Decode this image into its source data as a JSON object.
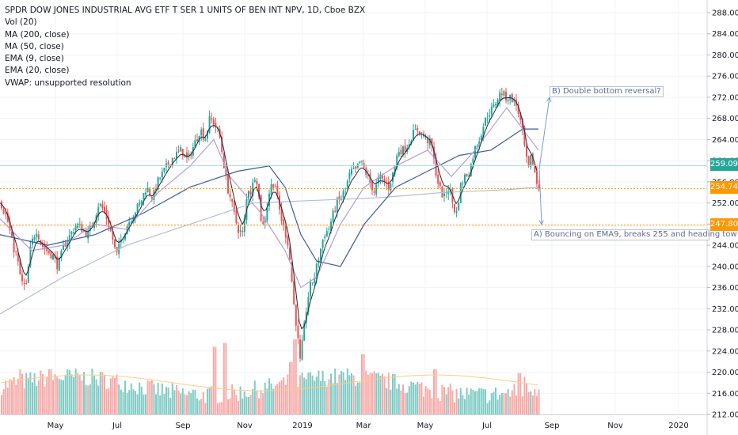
{
  "legend": {
    "title": "SPDR DOW JONES INDUSTRIAL AVG ETF T SER 1 UNITS OF BEN INT NPV, 1D, Cboe BZX",
    "lines": [
      "Vol (20)",
      "MA (200, close)",
      "MA (50, close)",
      "EMA (9, close)",
      "EMA (20, close)",
      "VWAP: unsupported resolution"
    ]
  },
  "price_tags": [
    {
      "label": "259.09",
      "color": "#26a69a"
    },
    {
      "label": "254.74",
      "color": "#ff9800"
    },
    {
      "label": "247.80",
      "color": "#ff9800"
    }
  ],
  "annotations": {
    "b": "B) Double bottom reversal?",
    "a": "A) Bouncing on EMA9, breaks 255 and heading tow"
  },
  "colors": {
    "up": "#26a69a",
    "down": "#ef5350",
    "vol_up": "#80cbc4",
    "vol_down": "#f7a9a7",
    "ma200": "#b2bfd6",
    "ma50": "#3f5c9a",
    "ema9": "#1e2a3a",
    "ema20": "#b39ddb",
    "level": "#ff9800",
    "grid": "#f0f3fa"
  },
  "chart_data": {
    "type": "candlestick",
    "symbol": "SPDR DOW JONES INDUSTRIAL AVG ETF T SER 1 UNITS OF BEN INT NPV",
    "interval": "1D",
    "exchange": "Cboe BZX",
    "ylim": [
      212,
      290
    ],
    "y_ticks": [
      "288.00",
      "284.00",
      "280.00",
      "276.00",
      "272.00",
      "268.00",
      "264.00",
      "260.00",
      "256.00",
      "252.00",
      "248.00",
      "244.00",
      "240.00",
      "236.00",
      "232.00",
      "228.00",
      "224.00",
      "220.00",
      "216.00",
      "212.00"
    ],
    "x_ticks": [
      "May",
      "Jul",
      "Sep",
      "Nov",
      "2019",
      "Mar",
      "May",
      "Jul",
      "Sep",
      "Nov",
      "2020"
    ],
    "horizontal_levels": [
      254.74,
      247.8
    ],
    "last_price": 259.09,
    "close_path": [
      [
        0,
        252
      ],
      [
        8,
        249
      ],
      [
        15,
        244
      ],
      [
        20,
        242
      ],
      [
        26,
        237
      ],
      [
        32,
        236
      ],
      [
        38,
        244
      ],
      [
        45,
        247
      ],
      [
        52,
        244
      ],
      [
        58,
        243
      ],
      [
        66,
        242
      ],
      [
        72,
        240
      ],
      [
        80,
        244
      ],
      [
        88,
        246
      ],
      [
        96,
        248
      ],
      [
        103,
        247
      ],
      [
        110,
        246
      ],
      [
        118,
        249
      ],
      [
        124,
        252
      ],
      [
        132,
        250
      ],
      [
        140,
        246
      ],
      [
        146,
        242
      ],
      [
        152,
        245
      ],
      [
        160,
        248
      ],
      [
        168,
        250
      ],
      [
        176,
        252
      ],
      [
        184,
        255
      ],
      [
        192,
        253
      ],
      [
        198,
        256
      ],
      [
        206,
        258
      ],
      [
        214,
        260
      ],
      [
        220,
        261
      ],
      [
        228,
        262
      ],
      [
        236,
        260
      ],
      [
        244,
        263
      ],
      [
        252,
        266
      ],
      [
        258,
        264
      ],
      [
        264,
        268
      ],
      [
        270,
        267
      ],
      [
        276,
        265
      ],
      [
        280,
        261
      ],
      [
        286,
        255
      ],
      [
        290,
        253
      ],
      [
        296,
        249
      ],
      [
        300,
        247
      ],
      [
        306,
        246
      ],
      [
        312,
        255
      ],
      [
        316,
        254
      ],
      [
        322,
        258
      ],
      [
        326,
        253
      ],
      [
        330,
        247
      ],
      [
        336,
        251
      ],
      [
        340,
        255
      ],
      [
        346,
        256
      ],
      [
        350,
        252
      ],
      [
        356,
        248
      ],
      [
        362,
        245
      ],
      [
        366,
        240
      ],
      [
        370,
        233
      ],
      [
        374,
        228
      ],
      [
        378,
        222
      ],
      [
        382,
        227
      ],
      [
        386,
        232
      ],
      [
        390,
        236
      ],
      [
        396,
        238
      ],
      [
        402,
        242
      ],
      [
        408,
        246
      ],
      [
        414,
        247
      ],
      [
        418,
        249
      ],
      [
        424,
        252
      ],
      [
        430,
        253
      ],
      [
        436,
        255
      ],
      [
        442,
        258
      ],
      [
        448,
        258
      ],
      [
        454,
        260
      ],
      [
        460,
        258
      ],
      [
        466,
        256
      ],
      [
        472,
        254
      ],
      [
        478,
        257
      ],
      [
        484,
        256
      ],
      [
        490,
        255
      ],
      [
        496,
        258
      ],
      [
        502,
        262
      ],
      [
        508,
        262
      ],
      [
        514,
        263
      ],
      [
        520,
        265
      ],
      [
        526,
        266
      ],
      [
        532,
        265
      ],
      [
        538,
        264
      ],
      [
        544,
        263
      ],
      [
        548,
        259
      ],
      [
        552,
        256
      ],
      [
        556,
        254
      ],
      [
        560,
        253
      ],
      [
        564,
        255
      ],
      [
        568,
        254
      ],
      [
        572,
        251
      ],
      [
        576,
        250
      ],
      [
        580,
        255
      ],
      [
        586,
        257
      ],
      [
        592,
        258
      ],
      [
        598,
        262
      ],
      [
        604,
        264
      ],
      [
        610,
        267
      ],
      [
        616,
        269
      ],
      [
        622,
        270
      ],
      [
        628,
        272
      ],
      [
        632,
        273
      ],
      [
        638,
        272
      ],
      [
        644,
        272
      ],
      [
        650,
        271
      ],
      [
        654,
        269
      ],
      [
        658,
        266
      ],
      [
        662,
        262
      ],
      [
        666,
        258
      ],
      [
        670,
        261
      ],
      [
        674,
        258
      ],
      [
        678,
        255
      ],
      [
        680,
        254.7
      ]
    ],
    "ma200_path": [
      [
        0,
        231
      ],
      [
        80,
        238
      ],
      [
        160,
        244
      ],
      [
        240,
        248
      ],
      [
        320,
        252
      ],
      [
        400,
        252.5
      ],
      [
        480,
        253
      ],
      [
        560,
        254
      ],
      [
        640,
        254.5
      ],
      [
        680,
        255
      ]
    ],
    "ma50_path": [
      [
        0,
        246
      ],
      [
        60,
        244
      ],
      [
        120,
        246
      ],
      [
        180,
        250
      ],
      [
        240,
        255
      ],
      [
        300,
        258
      ],
      [
        340,
        259
      ],
      [
        360,
        255
      ],
      [
        380,
        246
      ],
      [
        400,
        241
      ],
      [
        430,
        240
      ],
      [
        460,
        248
      ],
      [
        500,
        255
      ],
      [
        540,
        258
      ],
      [
        580,
        261
      ],
      [
        620,
        262
      ],
      [
        660,
        266
      ],
      [
        680,
        266
      ]
    ],
    "ema20_path": [
      [
        0,
        249
      ],
      [
        40,
        243
      ],
      [
        80,
        244
      ],
      [
        120,
        248
      ],
      [
        160,
        247
      ],
      [
        200,
        254
      ],
      [
        240,
        259
      ],
      [
        270,
        264
      ],
      [
        290,
        257
      ],
      [
        330,
        250
      ],
      [
        360,
        243
      ],
      [
        380,
        236
      ],
      [
        400,
        238
      ],
      [
        430,
        248
      ],
      [
        460,
        255
      ],
      [
        500,
        259
      ],
      [
        540,
        262
      ],
      [
        570,
        257
      ],
      [
        600,
        262
      ],
      [
        640,
        270
      ],
      [
        660,
        266
      ],
      [
        680,
        262
      ]
    ],
    "volume": {
      "series": [
        {
          "name": "Vol (20)",
          "mean_relative": 0.4,
          "spikes_relative": [
            [
              25,
              0.6
            ],
            [
              62,
              0.6
            ],
            [
              270,
              0.9
            ],
            [
              283,
              0.95
            ],
            [
              366,
              0.7
            ],
            [
              372,
              1.0
            ],
            [
              458,
              0.8
            ],
            [
              549,
              0.6
            ],
            [
              655,
              0.55
            ],
            [
              662,
              0.5
            ]
          ]
        }
      ]
    }
  }
}
